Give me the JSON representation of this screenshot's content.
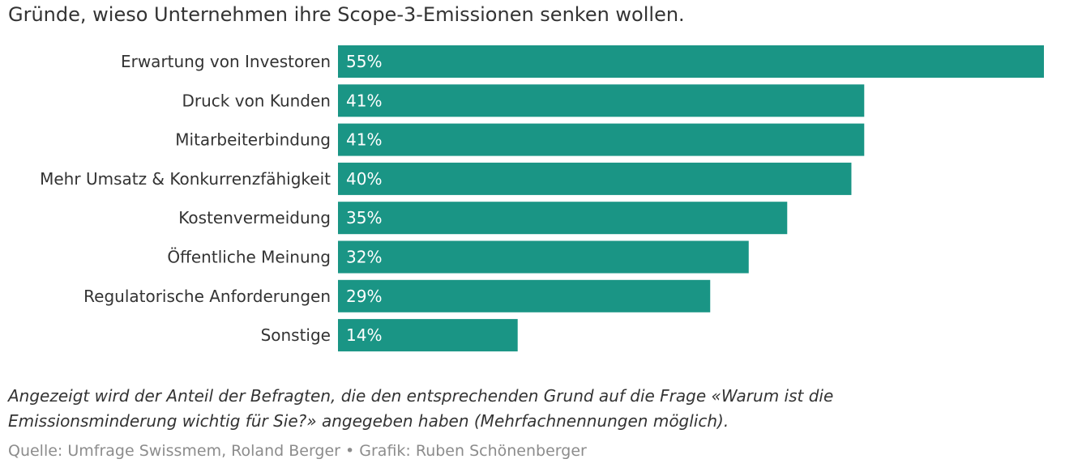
{
  "title": "Gründe, wieso Unternehmen ihre Scope-3-Emissionen senken wollen.",
  "note": "Angezeigt wird der Anteil der Befragten, die den entsprechenden Grund auf die Frage «Warum ist die Emissionsminderung wichtig für Sie?» angegeben haben (Mehrfachnennungen möglich).",
  "source": "Quelle: Umfrage Swissmem, Roland Berger • Grafik: Ruben Schönenberger",
  "colors": {
    "bar": "#1a9585",
    "bar_text": "#ffffff"
  },
  "chart_data": {
    "type": "bar",
    "orientation": "horizontal",
    "categories": [
      "Erwartung von Investoren",
      "Druck von Kunden",
      "Mitarbeiterbindung",
      "Mehr Umsatz & Konkurrenzfähigkeit",
      "Kostenvermeidung",
      "Öffentliche Meinung",
      "Regulatorische Anforderungen",
      "Sonstige"
    ],
    "values": [
      55,
      41,
      41,
      40,
      35,
      32,
      29,
      14
    ],
    "value_labels": [
      "55%",
      "41%",
      "41%",
      "40%",
      "35%",
      "32%",
      "29%",
      "14%"
    ],
    "xlim": [
      0,
      55
    ],
    "grid": false,
    "legend": "none"
  }
}
